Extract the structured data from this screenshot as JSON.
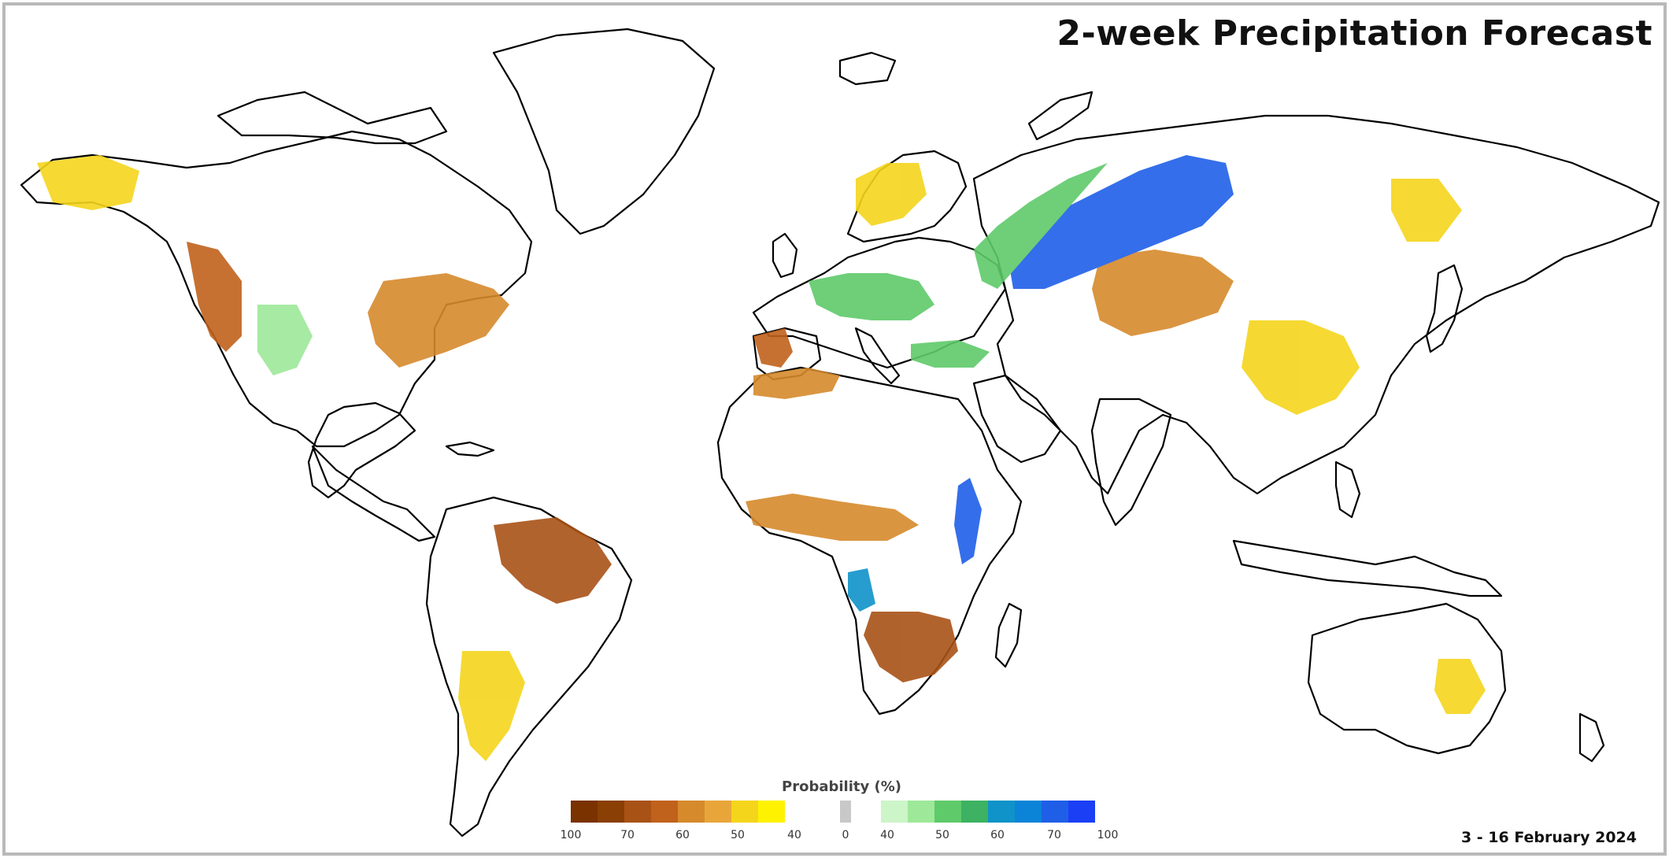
{
  "title": "2-week Precipitation Forecast",
  "date_range": "3 - 16 February 2024",
  "legend": {
    "title": "Probability (%)",
    "below_colors": [
      "#7a3200",
      "#8a3f05",
      "#a85216",
      "#c0621c",
      "#d68a2c",
      "#e8a63a",
      "#f5d51c",
      "#fff200"
    ],
    "neutral_color": "#c8c8c8",
    "above_colors": [
      "#ccf5c8",
      "#9ee89a",
      "#5fca6a",
      "#3cb262",
      "#0f93c9",
      "#0b84d8",
      "#1f5fe8",
      "#1a3ff5"
    ],
    "tick_labels": [
      "100",
      "70",
      "60",
      "50",
      "40",
      "0",
      "40",
      "50",
      "60",
      "70",
      "100"
    ]
  },
  "colors": {
    "land_outline": "#000000",
    "ocean": "#ffffff",
    "frame": "#b9b9b9"
  }
}
